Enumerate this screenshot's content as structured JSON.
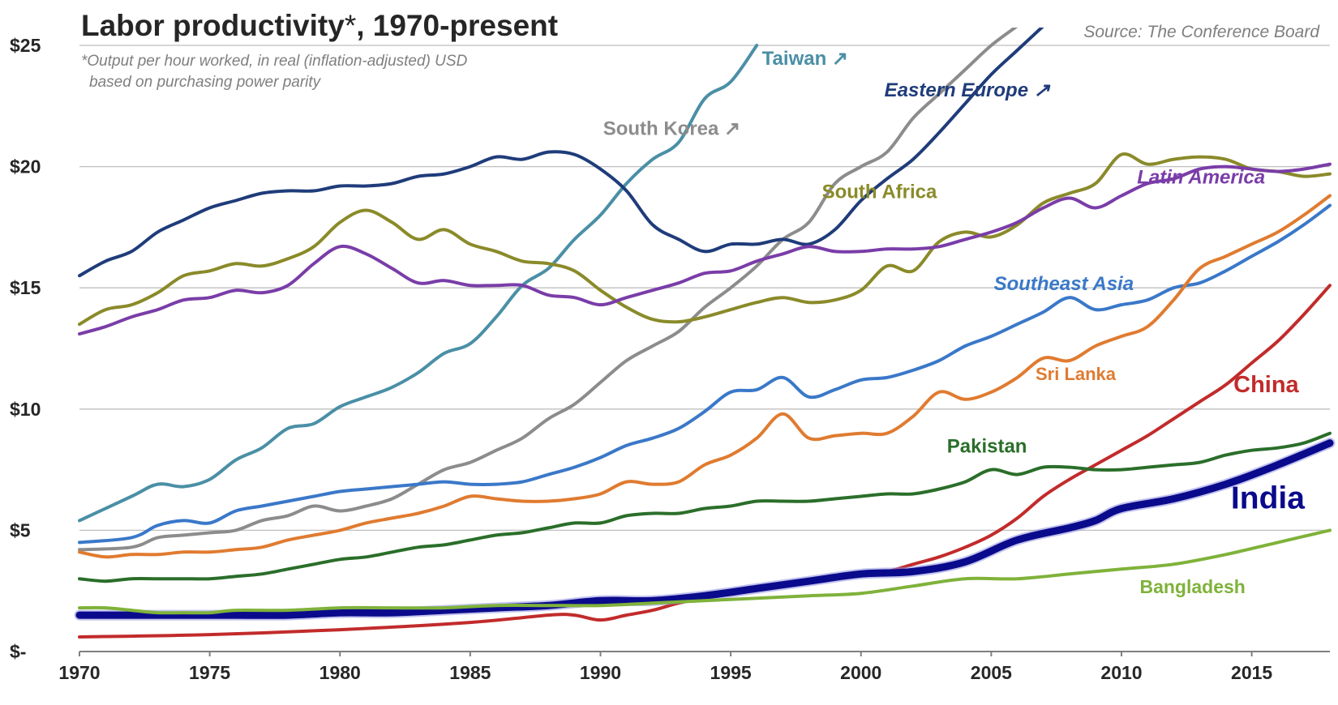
{
  "chart_data": {
    "type": "line",
    "title": "Labor productivity",
    "title_asterisk": "*",
    "title_rest": ", 1970-present",
    "footnote_line1": "*Output per hour worked,  in real (inflation-adjusted) USD",
    "footnote_line2": "based on purchasing power parity",
    "source": "Source: The Conference Board",
    "xlabel": "",
    "ylabel": "",
    "xlim": [
      1970,
      2018
    ],
    "ylim": [
      0,
      25
    ],
    "x_ticks": [
      {
        "value": 1970,
        "label": "1970"
      },
      {
        "value": 1975,
        "label": "1975"
      },
      {
        "value": 1980,
        "label": "1980"
      },
      {
        "value": 1985,
        "label": "1985"
      },
      {
        "value": 1990,
        "label": "1990"
      },
      {
        "value": 1995,
        "label": "1995"
      },
      {
        "value": 2000,
        "label": "2000"
      },
      {
        "value": 2005,
        "label": "2005"
      },
      {
        "value": 2010,
        "label": "2010"
      },
      {
        "value": 2015,
        "label": "2015"
      }
    ],
    "y_ticks": [
      {
        "value": 0,
        "label": "$-"
      },
      {
        "value": 5,
        "label": "$5"
      },
      {
        "value": 10,
        "label": "$10"
      },
      {
        "value": 15,
        "label": "$15"
      },
      {
        "value": 20,
        "label": "$20"
      },
      {
        "value": 25,
        "label": "$25"
      }
    ],
    "grid": true,
    "series": [
      {
        "name": "Taiwan",
        "label": "Taiwan ↗",
        "color": "#4a8fa6",
        "width": 4,
        "label_pos": {
          "x": 1996.2,
          "y": 24.2
        },
        "label_size": 24,
        "label_italic": false,
        "x": [
          1970,
          1972,
          1973,
          1974,
          1975,
          1976,
          1977,
          1978,
          1979,
          1980,
          1981,
          1982,
          1983,
          1984,
          1985,
          1986,
          1987,
          1988,
          1989,
          1990,
          1991,
          1992,
          1993,
          1994,
          1995,
          1996
        ],
        "y": [
          5.4,
          6.4,
          6.9,
          6.8,
          7.1,
          7.9,
          8.4,
          9.2,
          9.4,
          10.1,
          10.5,
          10.9,
          11.5,
          12.3,
          12.7,
          13.8,
          15.1,
          15.8,
          17.0,
          18.0,
          19.3,
          20.3,
          21.0,
          22.8,
          23.5,
          25.0
        ]
      },
      {
        "name": "South Korea",
        "label": "South Korea ↗",
        "color": "#8c8c8c",
        "width": 4,
        "label_pos": {
          "x": 1990.1,
          "y": 21.3
        },
        "label_size": 24,
        "label_italic": false,
        "x": [
          1970,
          1972,
          1973,
          1974,
          1975,
          1976,
          1977,
          1978,
          1979,
          1980,
          1981,
          1982,
          1983,
          1984,
          1985,
          1986,
          1987,
          1988,
          1989,
          1990,
          1991,
          1992,
          1993,
          1994,
          1995,
          1996,
          1997,
          1998,
          1999,
          2000,
          2001,
          2002,
          2003,
          2004,
          2005,
          2006
        ],
        "y": [
          4.2,
          4.3,
          4.7,
          4.8,
          4.9,
          5.0,
          5.4,
          5.6,
          6.0,
          5.8,
          6.0,
          6.3,
          6.9,
          7.5,
          7.8,
          8.3,
          8.8,
          9.6,
          10.2,
          11.1,
          12.0,
          12.6,
          13.2,
          14.2,
          15.0,
          15.9,
          17.0,
          17.7,
          19.3,
          20.0,
          20.6,
          22.0,
          23.0,
          24.0,
          25.0,
          25.8
        ]
      },
      {
        "name": "Eastern Europe",
        "label": "Eastern  Europe ↗",
        "color": "#1f3c7a",
        "width": 4,
        "label_pos": {
          "x": 2000.9,
          "y": 22.9
        },
        "label_size": 24,
        "label_italic": true,
        "x": [
          1970,
          1971,
          1972,
          1973,
          1974,
          1975,
          1976,
          1977,
          1978,
          1979,
          1980,
          1981,
          1982,
          1983,
          1984,
          1985,
          1986,
          1987,
          1988,
          1989,
          1990,
          1991,
          1992,
          1993,
          1994,
          1995,
          1996,
          1997,
          1998,
          1999,
          2000,
          2001,
          2002,
          2003,
          2004,
          2005,
          2006,
          2007
        ],
        "y": [
          15.5,
          16.1,
          16.5,
          17.3,
          17.8,
          18.3,
          18.6,
          18.9,
          19.0,
          19.0,
          19.2,
          19.2,
          19.3,
          19.6,
          19.7,
          20.0,
          20.4,
          20.3,
          20.6,
          20.5,
          19.9,
          19.0,
          17.6,
          17.0,
          16.5,
          16.8,
          16.8,
          17.0,
          16.8,
          17.4,
          18.6,
          19.5,
          20.3,
          21.4,
          22.6,
          23.8,
          24.8,
          25.8
        ]
      },
      {
        "name": "South Africa",
        "label": "South Africa",
        "color": "#8a8a2a",
        "width": 4,
        "label_pos": {
          "x": 1998.5,
          "y": 18.7
        },
        "label_size": 24,
        "label_italic": false,
        "x": [
          1970,
          1971,
          1972,
          1973,
          1974,
          1975,
          1976,
          1977,
          1978,
          1979,
          1980,
          1981,
          1982,
          1983,
          1984,
          1985,
          1986,
          1987,
          1988,
          1989,
          1990,
          1991,
          1992,
          1993,
          1994,
          1995,
          1996,
          1997,
          1998,
          1999,
          2000,
          2001,
          2002,
          2003,
          2004,
          2005,
          2006,
          2007,
          2008,
          2009,
          2010,
          2011,
          2012,
          2013,
          2014,
          2015,
          2016,
          2017,
          2018
        ],
        "y": [
          13.5,
          14.1,
          14.3,
          14.8,
          15.5,
          15.7,
          16.0,
          15.9,
          16.2,
          16.7,
          17.7,
          18.2,
          17.7,
          17.0,
          17.4,
          16.8,
          16.5,
          16.1,
          16.0,
          15.7,
          14.9,
          14.2,
          13.7,
          13.6,
          13.8,
          14.1,
          14.4,
          14.6,
          14.4,
          14.5,
          14.9,
          15.9,
          15.7,
          16.9,
          17.3,
          17.1,
          17.6,
          18.5,
          18.9,
          19.3,
          20.5,
          20.1,
          20.3,
          20.4,
          20.3,
          19.9,
          19.8,
          19.6,
          19.7
        ]
      },
      {
        "name": "Latin America",
        "label": "Latin America",
        "color": "#7a3da8",
        "width": 4,
        "label_pos": {
          "x": 2010.6,
          "y": 19.3
        },
        "label_size": 24,
        "label_italic": true,
        "x": [
          1970,
          1971,
          1972,
          1973,
          1974,
          1975,
          1976,
          1977,
          1978,
          1979,
          1980,
          1981,
          1982,
          1983,
          1984,
          1985,
          1986,
          1987,
          1988,
          1989,
          1990,
          1991,
          1992,
          1993,
          1994,
          1995,
          1996,
          1997,
          1998,
          1999,
          2000,
          2001,
          2002,
          2003,
          2004,
          2005,
          2006,
          2007,
          2008,
          2009,
          2010,
          2011,
          2012,
          2013,
          2014,
          2015,
          2016,
          2017,
          2018
        ],
        "y": [
          13.1,
          13.4,
          13.8,
          14.1,
          14.5,
          14.6,
          14.9,
          14.8,
          15.1,
          16.0,
          16.7,
          16.4,
          15.8,
          15.2,
          15.3,
          15.1,
          15.1,
          15.1,
          14.7,
          14.6,
          14.3,
          14.6,
          14.9,
          15.2,
          15.6,
          15.7,
          16.1,
          16.4,
          16.7,
          16.5,
          16.5,
          16.6,
          16.6,
          16.7,
          17.0,
          17.3,
          17.7,
          18.3,
          18.7,
          18.3,
          18.8,
          19.3,
          19.5,
          19.9,
          20.0,
          19.9,
          19.8,
          19.9,
          20.1
        ]
      },
      {
        "name": "Southeast Asia",
        "label": "Southeast Asia",
        "color": "#3a78c9",
        "width": 4,
        "label_pos": {
          "x": 2005.1,
          "y": 14.9
        },
        "label_size": 24,
        "label_italic": true,
        "x": [
          1970,
          1972,
          1973,
          1974,
          1975,
          1976,
          1977,
          1978,
          1979,
          1980,
          1981,
          1982,
          1983,
          1984,
          1985,
          1986,
          1987,
          1988,
          1989,
          1990,
          1991,
          1992,
          1993,
          1994,
          1995,
          1996,
          1997,
          1998,
          1999,
          2000,
          2001,
          2002,
          2003,
          2004,
          2005,
          2006,
          2007,
          2008,
          2009,
          2010,
          2011,
          2012,
          2013,
          2014,
          2015,
          2016,
          2017,
          2018
        ],
        "y": [
          4.5,
          4.7,
          5.2,
          5.4,
          5.3,
          5.8,
          6.0,
          6.2,
          6.4,
          6.6,
          6.7,
          6.8,
          6.9,
          7.0,
          6.9,
          6.9,
          7.0,
          7.3,
          7.6,
          8.0,
          8.5,
          8.8,
          9.2,
          9.9,
          10.7,
          10.8,
          11.3,
          10.5,
          10.8,
          11.2,
          11.3,
          11.6,
          12.0,
          12.6,
          13.0,
          13.5,
          14.0,
          14.6,
          14.1,
          14.3,
          14.5,
          15.0,
          15.2,
          15.7,
          16.3,
          16.9,
          17.6,
          18.4
        ]
      },
      {
        "name": "Sri Lanka",
        "label": "Sri Lanka",
        "color": "#e07b30",
        "width": 4,
        "label_pos": {
          "x": 2006.7,
          "y": 11.2
        },
        "label_size": 22,
        "label_italic": false,
        "x": [
          1970,
          1971,
          1972,
          1973,
          1974,
          1975,
          1976,
          1977,
          1978,
          1979,
          1980,
          1981,
          1982,
          1983,
          1984,
          1985,
          1986,
          1987,
          1988,
          1989,
          1990,
          1991,
          1992,
          1993,
          1994,
          1995,
          1996,
          1997,
          1998,
          1999,
          2000,
          2001,
          2002,
          2003,
          2004,
          2005,
          2006,
          2007,
          2008,
          2009,
          2010,
          2011,
          2012,
          2013,
          2014,
          2015,
          2016,
          2017,
          2018
        ],
        "y": [
          4.1,
          3.9,
          4.0,
          4.0,
          4.1,
          4.1,
          4.2,
          4.3,
          4.6,
          4.8,
          5.0,
          5.3,
          5.5,
          5.7,
          6.0,
          6.4,
          6.3,
          6.2,
          6.2,
          6.3,
          6.5,
          7.0,
          6.9,
          7.0,
          7.7,
          8.1,
          8.8,
          9.8,
          8.8,
          8.9,
          9.0,
          9.0,
          9.7,
          10.7,
          10.4,
          10.7,
          11.3,
          12.1,
          12.0,
          12.6,
          13.0,
          13.4,
          14.5,
          15.8,
          16.3,
          16.8,
          17.3,
          18.0,
          18.8
        ]
      },
      {
        "name": "China",
        "label": "China",
        "color": "#c22b2b",
        "width": 4,
        "label_pos": {
          "x": 2014.3,
          "y": 10.7
        },
        "label_size": 29,
        "label_italic": false,
        "x": [
          1970,
          1975,
          1980,
          1985,
          1988,
          1989,
          1990,
          1991,
          1992,
          1993,
          1994,
          1995,
          1996,
          1997,
          1998,
          1999,
          2000,
          2001,
          2002,
          2003,
          2004,
          2005,
          2006,
          2007,
          2008,
          2009,
          2010,
          2011,
          2012,
          2013,
          2014,
          2015,
          2016,
          2017,
          2018
        ],
        "y": [
          0.6,
          0.7,
          0.9,
          1.2,
          1.5,
          1.5,
          1.3,
          1.5,
          1.7,
          2.0,
          2.2,
          2.4,
          2.6,
          2.7,
          2.9,
          3.0,
          3.2,
          3.3,
          3.6,
          3.9,
          4.3,
          4.8,
          5.5,
          6.4,
          7.1,
          7.7,
          8.3,
          8.9,
          9.6,
          10.3,
          11.0,
          11.9,
          12.8,
          13.9,
          15.1
        ]
      },
      {
        "name": "Pakistan",
        "label": "Pakistan",
        "color": "#2a6e2a",
        "width": 4,
        "label_pos": {
          "x": 2003.3,
          "y": 8.2
        },
        "label_size": 24,
        "label_italic": false,
        "x": [
          1970,
          1971,
          1972,
          1973,
          1974,
          1975,
          1976,
          1977,
          1978,
          1979,
          1980,
          1981,
          1982,
          1983,
          1984,
          1985,
          1986,
          1987,
          1988,
          1989,
          1990,
          1991,
          1992,
          1993,
          1994,
          1995,
          1996,
          1997,
          1998,
          1999,
          2000,
          2001,
          2002,
          2003,
          2004,
          2005,
          2006,
          2007,
          2008,
          2009,
          2010,
          2011,
          2012,
          2013,
          2014,
          2015,
          2016,
          2017,
          2018
        ],
        "y": [
          3.0,
          2.9,
          3.0,
          3.0,
          3.0,
          3.0,
          3.1,
          3.2,
          3.4,
          3.6,
          3.8,
          3.9,
          4.1,
          4.3,
          4.4,
          4.6,
          4.8,
          4.9,
          5.1,
          5.3,
          5.3,
          5.6,
          5.7,
          5.7,
          5.9,
          6.0,
          6.2,
          6.2,
          6.2,
          6.3,
          6.4,
          6.5,
          6.5,
          6.7,
          7.0,
          7.5,
          7.3,
          7.6,
          7.6,
          7.5,
          7.5,
          7.6,
          7.7,
          7.8,
          8.1,
          8.3,
          8.4,
          8.6,
          9.0
        ]
      },
      {
        "name": "India",
        "label": "India",
        "color": "#0a0a8c",
        "width": 9,
        "label_pos": {
          "x": 2014.2,
          "y": 5.9
        },
        "label_size": 39,
        "label_italic": false,
        "x": [
          1970,
          1972,
          1974,
          1976,
          1978,
          1980,
          1982,
          1984,
          1986,
          1988,
          1990,
          1992,
          1994,
          1996,
          1998,
          2000,
          2002,
          2004,
          2006,
          2008,
          2009,
          2010,
          2012,
          2014,
          2016,
          2018
        ],
        "y": [
          1.5,
          1.5,
          1.5,
          1.5,
          1.5,
          1.6,
          1.6,
          1.7,
          1.8,
          1.9,
          2.1,
          2.1,
          2.3,
          2.6,
          2.9,
          3.2,
          3.3,
          3.7,
          4.6,
          5.1,
          5.4,
          5.9,
          6.3,
          6.9,
          7.7,
          8.6
        ]
      },
      {
        "name": "Bangladesh",
        "label": "Bangladesh",
        "color": "#7fb23a",
        "width": 4,
        "label_pos": {
          "x": 2010.7,
          "y": 2.4
        },
        "label_size": 23,
        "label_italic": false,
        "x": [
          1970,
          1971,
          1972,
          1973,
          1974,
          1975,
          1976,
          1978,
          1980,
          1982,
          1984,
          1986,
          1988,
          1990,
          1992,
          1994,
          1996,
          1998,
          2000,
          2002,
          2004,
          2006,
          2008,
          2010,
          2012,
          2014,
          2016,
          2018
        ],
        "y": [
          1.8,
          1.8,
          1.7,
          1.6,
          1.6,
          1.6,
          1.7,
          1.7,
          1.8,
          1.8,
          1.8,
          1.9,
          1.9,
          1.9,
          2.0,
          2.1,
          2.2,
          2.3,
          2.4,
          2.7,
          3.0,
          3.0,
          3.2,
          3.4,
          3.6,
          4.0,
          4.5,
          5.0
        ]
      }
    ]
  }
}
